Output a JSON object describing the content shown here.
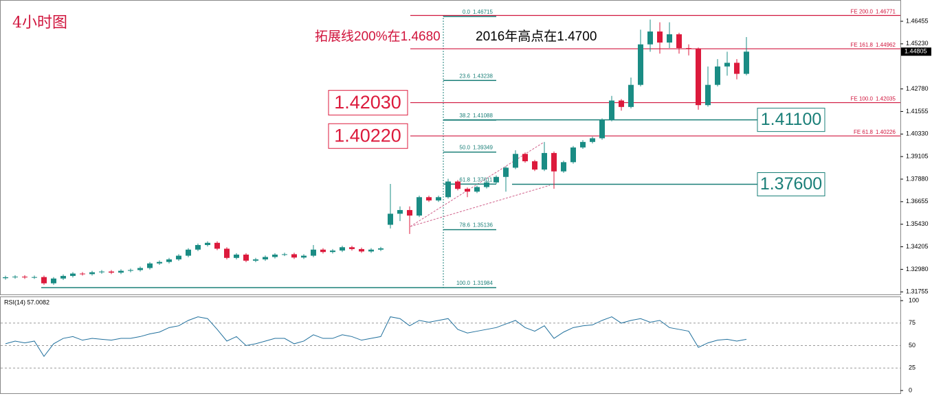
{
  "chart_data": {
    "type": "candlestick",
    "title": "4小时图",
    "annotations": [
      "拓展线200%在1.4680",
      "2016年高点在1.4700"
    ],
    "up_color": "#1a8c84",
    "down_color": "#dc1a3c",
    "ylim": [
      1.31579,
      1.47611
    ],
    "yticks": [
      1.46455,
      {
        "value": 1.4523,
        "label": "1.45230"
      },
      {
        "value": 1.4278,
        "label": "1.42780"
      },
      1.41555,
      {
        "value": 1.4033,
        "label": "1.40330"
      },
      1.39105,
      {
        "value": 1.3788,
        "label": "1.37880"
      },
      1.36655,
      {
        "value": 1.3543,
        "label": "1.35430"
      },
      1.34205,
      {
        "value": 1.3298,
        "label": "1.32980"
      },
      1.31755
    ],
    "current_price": 1.44805,
    "ohlc": [
      [
        1.325,
        1.3263,
        1.3242,
        1.3255
      ],
      [
        1.3255,
        1.3266,
        1.3247,
        1.3258
      ],
      [
        1.3258,
        1.3266,
        1.3246,
        1.3254
      ],
      [
        1.3254,
        1.3264,
        1.3246,
        1.3256
      ],
      [
        1.3256,
        1.3264,
        1.3214,
        1.3222
      ],
      [
        1.3222,
        1.3256,
        1.3214,
        1.3248
      ],
      [
        1.3248,
        1.327,
        1.324,
        1.3262
      ],
      [
        1.3262,
        1.3283,
        1.3254,
        1.3275
      ],
      [
        1.3275,
        1.3283,
        1.3264,
        1.3272
      ],
      [
        1.3272,
        1.329,
        1.3264,
        1.3282
      ],
      [
        1.3282,
        1.3294,
        1.3274,
        1.3286
      ],
      [
        1.3286,
        1.3294,
        1.3272,
        1.328
      ],
      [
        1.328,
        1.3298,
        1.3272,
        1.329
      ],
      [
        1.329,
        1.3302,
        1.3282,
        1.3294
      ],
      [
        1.3294,
        1.3313,
        1.3286,
        1.3305
      ],
      [
        1.3305,
        1.3338,
        1.3297,
        1.333
      ],
      [
        1.333,
        1.3346,
        1.3322,
        1.3338
      ],
      [
        1.3338,
        1.336,
        1.333,
        1.3352
      ],
      [
        1.3352,
        1.338,
        1.3344,
        1.3372
      ],
      [
        1.3372,
        1.3413,
        1.3364,
        1.3405
      ],
      [
        1.3405,
        1.3438,
        1.3397,
        1.343
      ],
      [
        1.343,
        1.345,
        1.3422,
        1.3442
      ],
      [
        1.3442,
        1.345,
        1.3402,
        1.341
      ],
      [
        1.341,
        1.3418,
        1.3352,
        1.336
      ],
      [
        1.336,
        1.3386,
        1.3352,
        1.3378
      ],
      [
        1.3378,
        1.3386,
        1.3337,
        1.3345
      ],
      [
        1.3345,
        1.336,
        1.3337,
        1.3352
      ],
      [
        1.3352,
        1.3373,
        1.3344,
        1.3365
      ],
      [
        1.3365,
        1.3386,
        1.3357,
        1.3378
      ],
      [
        1.3378,
        1.3388,
        1.337,
        1.338
      ],
      [
        1.338,
        1.3388,
        1.3354,
        1.3362
      ],
      [
        1.3362,
        1.338,
        1.3354,
        1.3372
      ],
      [
        1.3372,
        1.343,
        1.3364,
        1.3405
      ],
      [
        1.3405,
        1.3413,
        1.3384,
        1.3392
      ],
      [
        1.3392,
        1.3408,
        1.3384,
        1.34
      ],
      [
        1.34,
        1.3426,
        1.3392,
        1.3418
      ],
      [
        1.3418,
        1.3426,
        1.34,
        1.3408
      ],
      [
        1.3408,
        1.3416,
        1.3387,
        1.3395
      ],
      [
        1.3395,
        1.3413,
        1.3387,
        1.3405
      ],
      [
        1.3405,
        1.342,
        1.3397,
        1.3412
      ],
      [
        1.354,
        1.3762,
        1.352,
        1.36
      ],
      [
        1.36,
        1.364,
        1.356,
        1.362
      ],
      [
        1.362,
        1.364,
        1.349,
        1.359
      ],
      [
        1.359,
        1.3698,
        1.3582,
        1.369
      ],
      [
        1.369,
        1.3698,
        1.3664,
        1.3672
      ],
      [
        1.3672,
        1.3698,
        1.3664,
        1.369
      ],
      [
        1.369,
        1.379,
        1.3682,
        1.3775
      ],
      [
        1.3775,
        1.3783,
        1.3727,
        1.3735
      ],
      [
        1.3735,
        1.3743,
        1.369,
        1.372
      ],
      [
        1.372,
        1.3753,
        1.3712,
        1.3745
      ],
      [
        1.3745,
        1.3778,
        1.3737,
        1.377
      ],
      [
        1.377,
        1.3808,
        1.3762,
        1.38
      ],
      [
        1.38,
        1.3858,
        1.372,
        1.385
      ],
      [
        1.385,
        1.3945,
        1.3842,
        1.3925
      ],
      [
        1.3925,
        1.3933,
        1.3877,
        1.3885
      ],
      [
        1.3885,
        1.3893,
        1.3832,
        1.384
      ],
      [
        1.384,
        1.399,
        1.3832,
        1.393
      ],
      [
        1.393,
        1.3938,
        1.3736,
        1.383
      ],
      [
        1.383,
        1.3888,
        1.3822,
        1.388
      ],
      [
        1.388,
        1.3968,
        1.3872,
        1.396
      ],
      [
        1.396,
        1.4,
        1.3952,
        1.399
      ],
      [
        1.399,
        1.4018,
        1.3982,
        1.401
      ],
      [
        1.401,
        1.4118,
        1.4002,
        1.411
      ],
      [
        1.411,
        1.424,
        1.4102,
        1.4215
      ],
      [
        1.4215,
        1.4223,
        1.416,
        1.418
      ],
      [
        1.418,
        1.434,
        1.4172,
        1.43
      ],
      [
        1.43,
        1.46,
        1.4292,
        1.452
      ],
      [
        1.452,
        1.4655,
        1.448,
        1.459
      ],
      [
        1.459,
        1.464,
        1.447,
        1.453
      ],
      [
        1.453,
        1.464,
        1.45,
        1.4575
      ],
      [
        1.4575,
        1.4583,
        1.447,
        1.45
      ],
      [
        1.45,
        1.452,
        1.446,
        1.4495
      ],
      [
        1.4495,
        1.4503,
        1.4165,
        1.419
      ],
      [
        1.419,
        1.44,
        1.4182,
        1.43
      ],
      [
        1.43,
        1.444,
        1.4292,
        1.44
      ],
      [
        1.44,
        1.448,
        1.435,
        1.442
      ],
      [
        1.442,
        1.444,
        1.433,
        1.436
      ],
      [
        1.436,
        1.456,
        1.4352,
        1.44805
      ]
    ],
    "fib_levels": [
      {
        "ratio": "0.0",
        "value": 1.46715
      },
      {
        "ratio": "23.6",
        "value": 1.43238
      },
      {
        "ratio": "38.2",
        "value": 1.41088
      },
      {
        "ratio": "50.0",
        "value": 1.39349
      },
      {
        "ratio": "61.8",
        "value": 1.37611
      },
      {
        "ratio": "78.6",
        "value": 1.35136
      },
      {
        "ratio": "100.0",
        "value": 1.31984
      }
    ],
    "fe_levels": [
      {
        "ratio": "FE 200.0",
        "value": 1.46771
      },
      {
        "ratio": "FE 161.8",
        "value": 1.44962
      },
      {
        "ratio": "FE 100.0",
        "value": 1.42035
      },
      {
        "ratio": "FE 61.8",
        "value": 1.40226
      }
    ],
    "marked_levels": [
      {
        "value": 1.4203,
        "label": "1.42030",
        "color": "#dc1a3c",
        "side": "left"
      },
      {
        "value": 1.4022,
        "label": "1.40220",
        "color": "#dc1a3c",
        "side": "left"
      },
      {
        "value": 1.411,
        "label": "1.41100",
        "color": "#1a7f78",
        "side": "right"
      },
      {
        "value": 1.376,
        "label": "1.37600",
        "color": "#1a7f78",
        "side": "right"
      }
    ],
    "rsi": {
      "label": "RSI(14) 57.0082",
      "color": "#1f6f9c",
      "ylim": [
        -3.8,
        104.6
      ],
      "yticks": [
        100,
        75,
        50,
        25,
        0
      ],
      "values": [
        52,
        55,
        53,
        55,
        38,
        52,
        58,
        60,
        56,
        58,
        57,
        56,
        58,
        58,
        60,
        63,
        65,
        70,
        72,
        78,
        82,
        80,
        68,
        55,
        60,
        50,
        52,
        55,
        58,
        58,
        52,
        55,
        62,
        58,
        58,
        62,
        60,
        56,
        58,
        60,
        82,
        80,
        72,
        78,
        76,
        78,
        80,
        68,
        64,
        66,
        68,
        70,
        74,
        78,
        70,
        66,
        72,
        58,
        65,
        70,
        72,
        73,
        78,
        82,
        75,
        78,
        80,
        76,
        78,
        70,
        68,
        66,
        48,
        53,
        56,
        57,
        55,
        57
      ]
    }
  }
}
